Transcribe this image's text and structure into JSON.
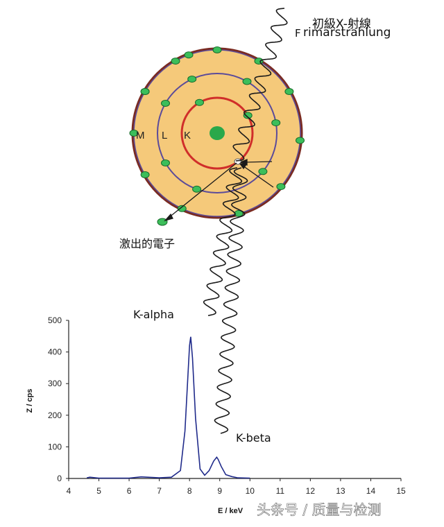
{
  "labels": {
    "primary_xray_cn": "初級X-射線",
    "primary_xray_de_prefix": "F",
    "primary_xray_de_overlay": "rimärstrahlung",
    "ejected_electron": "激出的電子",
    "k_alpha": "K-alpha",
    "k_beta": "K-beta",
    "watermark": "头条号 / 质量与检测"
  },
  "atom": {
    "shells": [
      "M",
      "L",
      "K"
    ],
    "colors": {
      "body": "#f5c97a",
      "outline": "#7a2b22",
      "k_shell": "#d02e2a",
      "lm_shell": "#5b4b9a",
      "electron": "#3cbe5a",
      "nucleus": "#2aa84a",
      "wave": "#1a1a1a"
    }
  },
  "chart_data": {
    "type": "line",
    "xlabel": "E / keV",
    "ylabel": "Z / cps",
    "xlim": [
      4,
      15
    ],
    "ylim": [
      0,
      500
    ],
    "xticks": [
      4,
      5,
      6,
      7,
      8,
      9,
      10,
      11,
      12,
      13,
      14,
      15
    ],
    "yticks": [
      0,
      100,
      200,
      300,
      400,
      500
    ],
    "series": [
      {
        "color": "#1f2a8a",
        "x": [
          4.6,
          4.7,
          5.0,
          6.0,
          6.4,
          7.0,
          7.4,
          7.7,
          7.85,
          7.95,
          8.0,
          8.04,
          8.1,
          8.2,
          8.35,
          8.5,
          8.65,
          8.8,
          8.9,
          8.95,
          9.05,
          9.2,
          9.4,
          9.6,
          10.0
        ],
        "y": [
          2,
          4,
          1,
          1,
          5,
          2,
          4,
          25,
          150,
          330,
          420,
          448,
          380,
          190,
          30,
          10,
          25,
          55,
          67,
          60,
          38,
          12,
          6,
          2,
          1
        ]
      }
    ],
    "annotations": [
      "K-alpha",
      "K-beta"
    ]
  }
}
